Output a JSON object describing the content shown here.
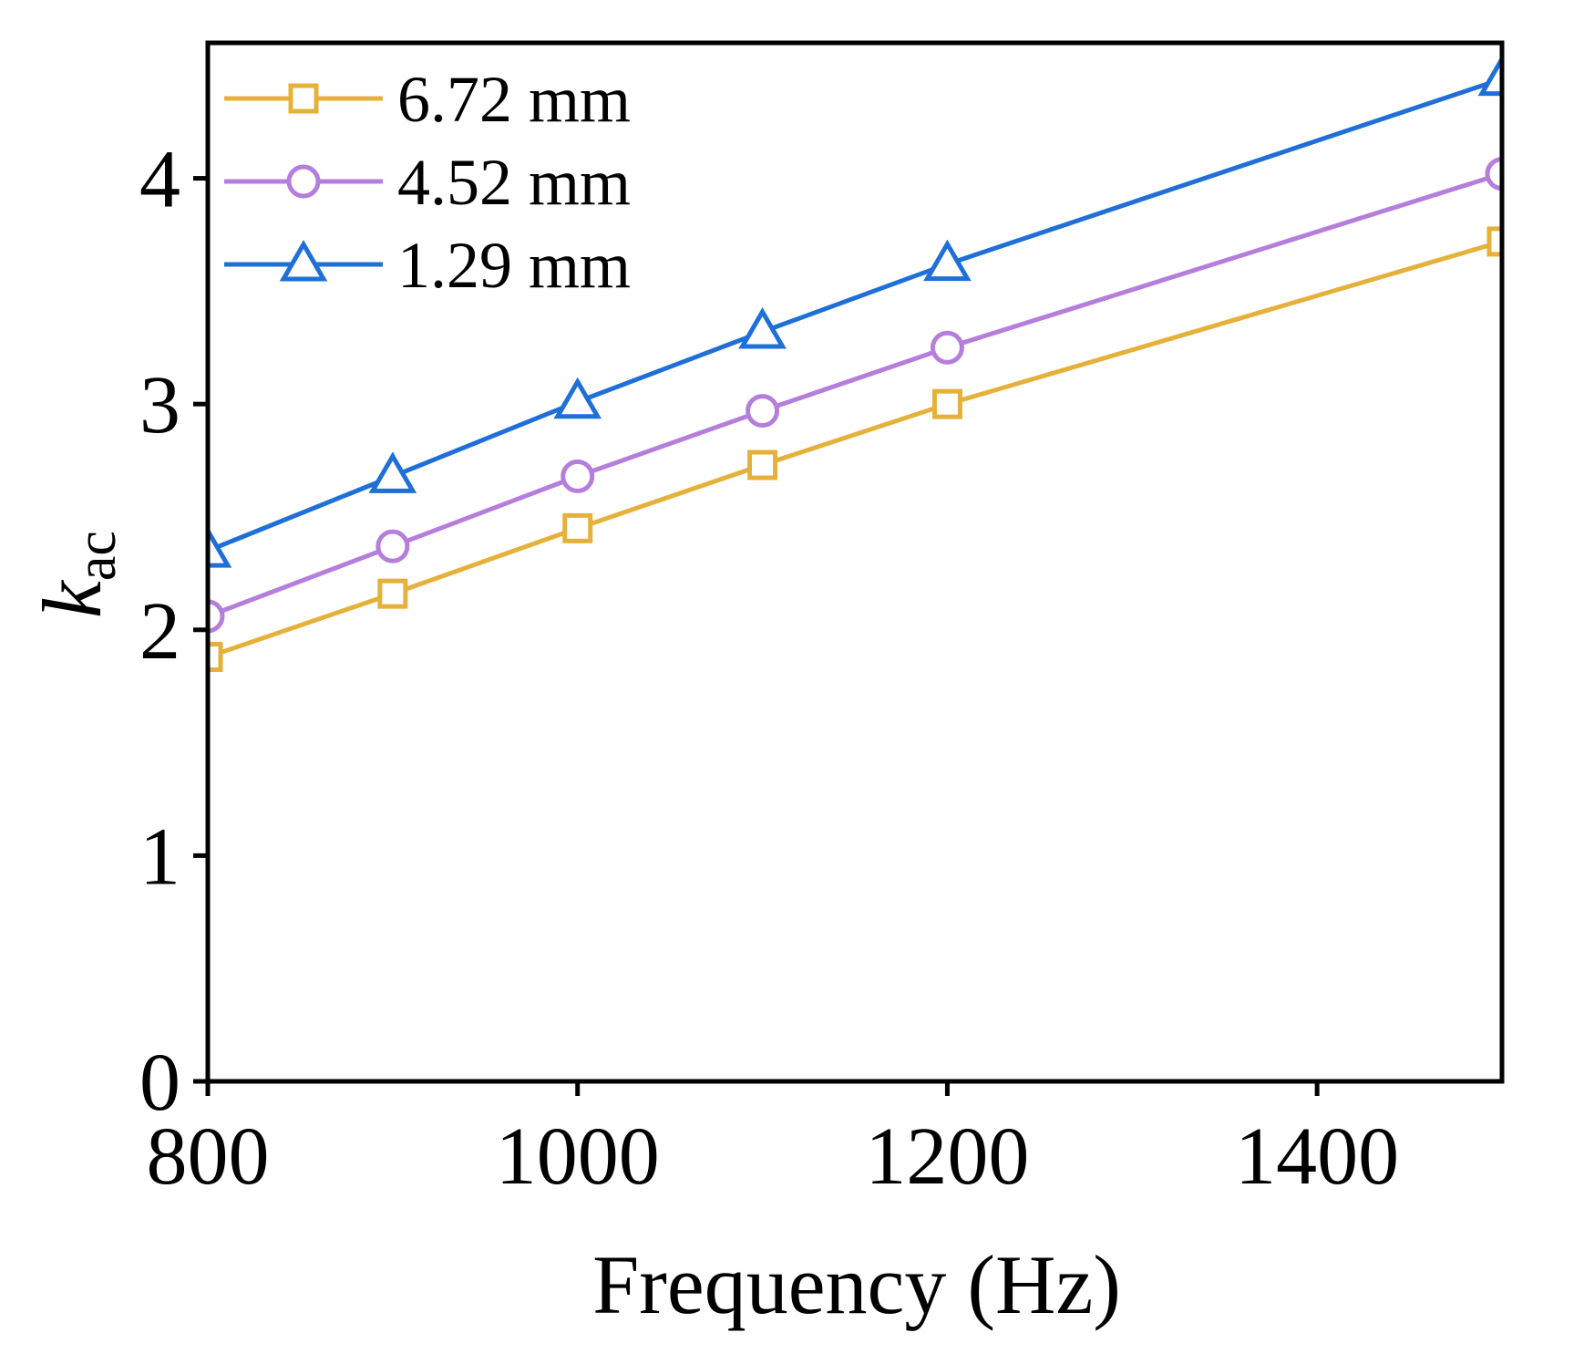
{
  "chart_data": {
    "type": "line",
    "title": "",
    "xlabel": "Frequency (Hz)",
    "ylabel_main": "k",
    "ylabel_sub": "ac",
    "xlim": [
      800,
      1500
    ],
    "ylim": [
      0,
      4.6
    ],
    "xticks": [
      800,
      1000,
      1200,
      1400
    ],
    "yticks": [
      0,
      1,
      2,
      3,
      4
    ],
    "grid": false,
    "legend_position": "top-left",
    "x": [
      800,
      900,
      1000,
      1100,
      1200,
      1500
    ],
    "series": [
      {
        "name": "6.72 mm",
        "marker": "square",
        "color": "#E5B13A",
        "values": [
          1.88,
          2.16,
          2.45,
          2.73,
          3.0,
          3.72
        ]
      },
      {
        "name": "4.52 mm",
        "marker": "circle",
        "color": "#B57EDC",
        "values": [
          2.06,
          2.37,
          2.68,
          2.97,
          3.25,
          4.02
        ]
      },
      {
        "name": "1.29 mm",
        "marker": "triangle",
        "color": "#1F6FD8",
        "values": [
          2.35,
          2.68,
          3.01,
          3.32,
          3.62,
          4.44
        ]
      }
    ]
  }
}
